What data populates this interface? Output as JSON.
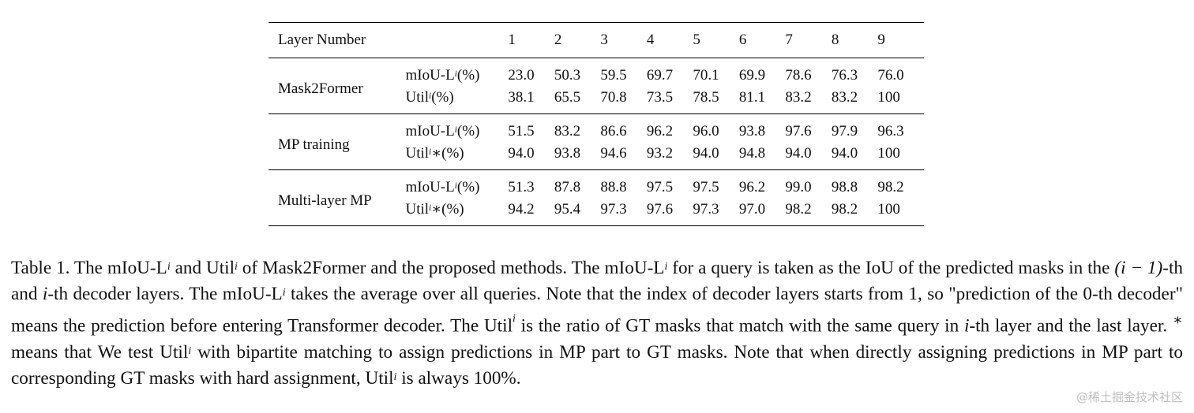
{
  "table": {
    "header": {
      "label": "Layer Number",
      "layers": [
        "1",
        "2",
        "3",
        "4",
        "5",
        "6",
        "7",
        "8",
        "9"
      ]
    },
    "groups": [
      {
        "name": "Mask2Former",
        "rows": [
          {
            "metric_base": "mIoU-L",
            "metric_sup": "i",
            "metric_suffix": "(%)",
            "values": [
              "23.0",
              "50.3",
              "59.5",
              "69.7",
              "70.1",
              "69.9",
              "78.6",
              "76.3",
              "76.0"
            ]
          },
          {
            "metric_base": "Util",
            "metric_sup": "i",
            "metric_suffix": "(%)",
            "values": [
              "38.1",
              "65.5",
              "70.8",
              "73.5",
              "78.5",
              "81.1",
              "83.2",
              "83.2",
              "100"
            ]
          }
        ]
      },
      {
        "name": "MP training",
        "rows": [
          {
            "metric_base": "mIoU-L",
            "metric_sup": "i",
            "metric_suffix": "(%)",
            "values": [
              "51.5",
              "83.2",
              "86.6",
              "96.2",
              "96.0",
              "93.8",
              "97.6",
              "97.9",
              "96.3"
            ]
          },
          {
            "metric_base": "Util",
            "metric_sup": "i",
            "metric_suffix": "∗(%)",
            "values": [
              "94.0",
              "93.8",
              "94.6",
              "93.2",
              "94.0",
              "94.8",
              "94.0",
              "94.0",
              "100"
            ]
          }
        ]
      },
      {
        "name": "Multi-layer MP",
        "rows": [
          {
            "metric_base": "mIoU-L",
            "metric_sup": "i",
            "metric_suffix": "(%)",
            "values": [
              "51.3",
              "87.8",
              "88.8",
              "97.5",
              "97.5",
              "96.2",
              "99.0",
              "98.8",
              "98.2"
            ]
          },
          {
            "metric_base": "Util",
            "metric_sup": "i",
            "metric_suffix": "∗(%)",
            "values": [
              "94.2",
              "95.4",
              "97.3",
              "97.6",
              "97.3",
              "97.0",
              "98.2",
              "98.2",
              "100"
            ]
          }
        ]
      }
    ]
  },
  "caption": {
    "t1": "Table 1. The mIoU-L",
    "t2": " and Util",
    "t3": " of Mask2Former and the proposed methods. The mIoU-L",
    "t4": " for a query is taken as the IoU of the predicted masks in the ",
    "m1": "(i − 1)",
    "t5": "-th and ",
    "m2": "i",
    "t6": "-th decoder layers. The mIoU-L",
    "t7": " takes the average over all queries. Note that the index of decoder layers starts from 1, so \"prediction of the 0-th decoder\" means the prediction before entering Transformer decoder. The Util",
    "t8": " is the ratio of GT masks that match with the same query in ",
    "m3": "i",
    "t9": "-th layer and the last layer. ",
    "t10": " means that We test Util",
    "t11": " with bipartite matching to assign predictions in MP part to GT masks. Note that when directly assigning predictions in MP part to corresponding GT masks with hard assignment, Util",
    "t12": " is always 100%.",
    "sup": "i",
    "star": "∗"
  },
  "watermark": "@稀土掘金技术社区"
}
